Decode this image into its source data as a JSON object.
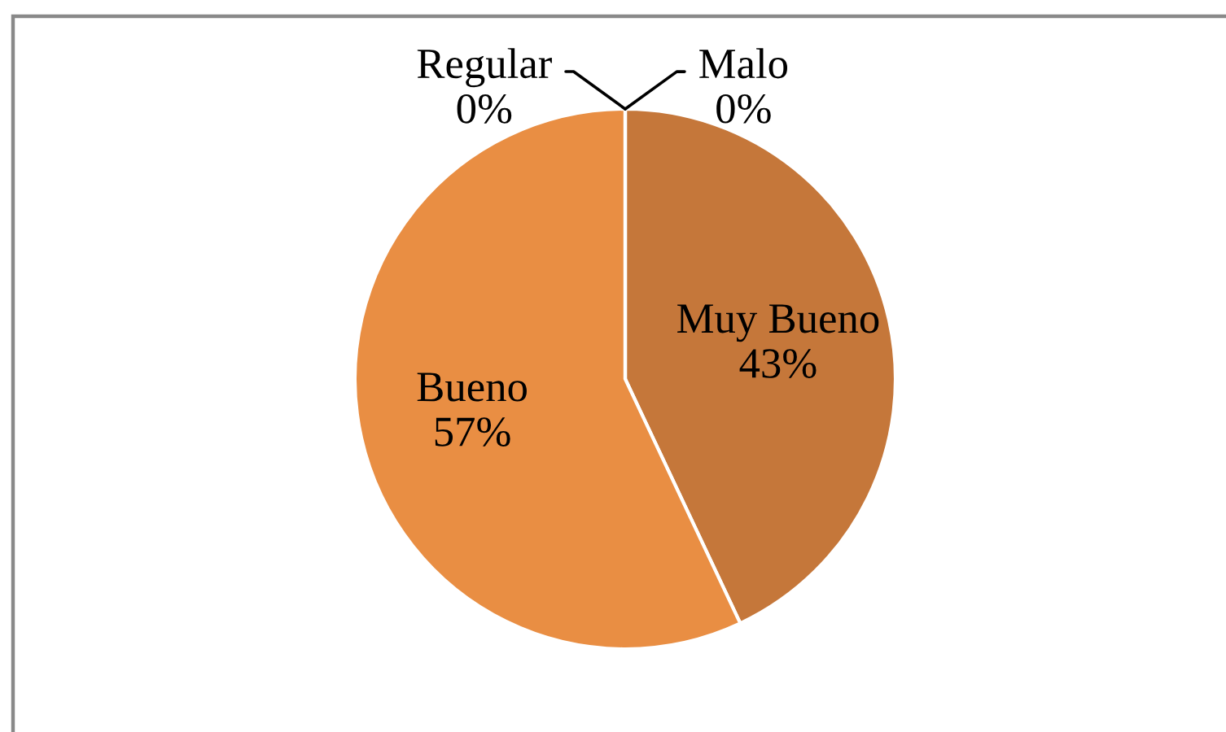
{
  "chart_data": {
    "type": "pie",
    "categories": [
      "Muy Bueno",
      "Bueno",
      "Regular",
      "Malo"
    ],
    "values": [
      43,
      57,
      0,
      0
    ],
    "value_labels": [
      "43%",
      "57%",
      "0%",
      "0%"
    ],
    "colors": [
      "#c5773a",
      "#e98e43",
      "#a5a5a5",
      "#ffc000"
    ]
  }
}
